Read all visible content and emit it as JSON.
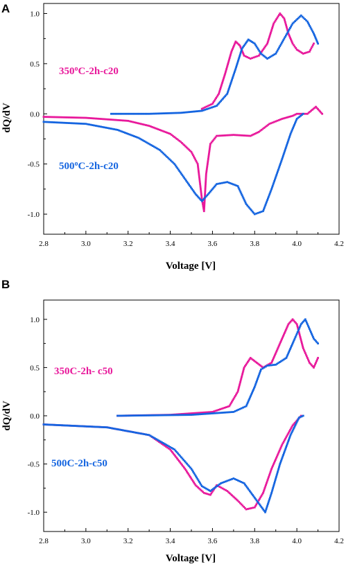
{
  "colors": {
    "series_350": "#E8199B",
    "series_500": "#1565E0",
    "axis": "#000000"
  },
  "chart_data": [
    {
      "type": "scatter",
      "panel_label": "A",
      "xlabel": "Voltage [V]",
      "ylabel": "dQ/dV",
      "xlim": [
        2.8,
        4.2
      ],
      "ylim": [
        -1.2,
        1.1
      ],
      "xticks": [
        "2.8",
        "3.0",
        "3.2",
        "3.4",
        "3.6",
        "3.8",
        "4.0",
        "4.2"
      ],
      "yticks": [
        "1.0",
        "0.5",
        "0.0",
        "-0.5",
        "-1.0"
      ],
      "grid": false,
      "series": [
        {
          "name": "350oC-2h-c20",
          "label_main": "350",
          "label_sup": "o",
          "label_rest": "C-2h-c20",
          "color": "#E8199B",
          "charge": [
            [
              3.55,
              0.05
            ],
            [
              3.6,
              0.1
            ],
            [
              3.63,
              0.2
            ],
            [
              3.66,
              0.4
            ],
            [
              3.69,
              0.62
            ],
            [
              3.71,
              0.72
            ],
            [
              3.73,
              0.68
            ],
            [
              3.75,
              0.58
            ],
            [
              3.78,
              0.55
            ],
            [
              3.82,
              0.58
            ],
            [
              3.86,
              0.7
            ],
            [
              3.89,
              0.9
            ],
            [
              3.92,
              1.0
            ],
            [
              3.94,
              0.95
            ],
            [
              3.96,
              0.8
            ],
            [
              3.98,
              0.7
            ],
            [
              4.0,
              0.64
            ],
            [
              4.03,
              0.6
            ],
            [
              4.06,
              0.62
            ],
            [
              4.08,
              0.7
            ]
          ],
          "discharge": [
            [
              2.8,
              -0.03
            ],
            [
              3.0,
              -0.04
            ],
            [
              3.2,
              -0.07
            ],
            [
              3.3,
              -0.12
            ],
            [
              3.4,
              -0.2
            ],
            [
              3.45,
              -0.28
            ],
            [
              3.5,
              -0.38
            ],
            [
              3.53,
              -0.5
            ],
            [
              3.55,
              -0.85
            ],
            [
              3.56,
              -0.97
            ],
            [
              3.57,
              -0.6
            ],
            [
              3.59,
              -0.3
            ],
            [
              3.62,
              -0.22
            ],
            [
              3.7,
              -0.21
            ],
            [
              3.78,
              -0.22
            ],
            [
              3.82,
              -0.18
            ],
            [
              3.87,
              -0.1
            ],
            [
              3.93,
              -0.05
            ],
            [
              3.98,
              -0.02
            ],
            [
              4.0,
              0.0
            ],
            [
              4.05,
              0.0
            ],
            [
              4.09,
              0.07
            ],
            [
              4.12,
              0.0
            ]
          ]
        },
        {
          "name": "500oC-2h-c20",
          "label_main": "500",
          "label_sup": "o",
          "label_rest": "C-2h-c20",
          "color": "#1565E0",
          "charge": [
            [
              3.12,
              0.0
            ],
            [
              3.3,
              0.0
            ],
            [
              3.45,
              0.01
            ],
            [
              3.55,
              0.03
            ],
            [
              3.62,
              0.08
            ],
            [
              3.67,
              0.2
            ],
            [
              3.71,
              0.45
            ],
            [
              3.74,
              0.65
            ],
            [
              3.77,
              0.74
            ],
            [
              3.8,
              0.7
            ],
            [
              3.83,
              0.6
            ],
            [
              3.86,
              0.55
            ],
            [
              3.9,
              0.6
            ],
            [
              3.94,
              0.75
            ],
            [
              3.98,
              0.9
            ],
            [
              4.02,
              0.98
            ],
            [
              4.05,
              0.92
            ],
            [
              4.08,
              0.8
            ],
            [
              4.1,
              0.7
            ]
          ],
          "discharge": [
            [
              2.8,
              -0.08
            ],
            [
              3.0,
              -0.1
            ],
            [
              3.15,
              -0.16
            ],
            [
              3.25,
              -0.24
            ],
            [
              3.35,
              -0.36
            ],
            [
              3.42,
              -0.5
            ],
            [
              3.48,
              -0.68
            ],
            [
              3.52,
              -0.8
            ],
            [
              3.55,
              -0.87
            ],
            [
              3.58,
              -0.8
            ],
            [
              3.62,
              -0.7
            ],
            [
              3.67,
              -0.68
            ],
            [
              3.72,
              -0.72
            ],
            [
              3.76,
              -0.9
            ],
            [
              3.8,
              -1.0
            ],
            [
              3.84,
              -0.97
            ],
            [
              3.88,
              -0.75
            ],
            [
              3.93,
              -0.45
            ],
            [
              3.97,
              -0.2
            ],
            [
              4.0,
              -0.05
            ],
            [
              4.03,
              0.0
            ]
          ]
        }
      ]
    },
    {
      "type": "scatter",
      "panel_label": "B",
      "xlabel": "Voltage [V]",
      "ylabel": "dQ/dV",
      "xlim": [
        2.8,
        4.2
      ],
      "ylim": [
        -1.2,
        1.2
      ],
      "xticks": [
        "2.8",
        "3.0",
        "3.2",
        "3.4",
        "3.6",
        "3.8",
        "4.0",
        "4.2"
      ],
      "yticks": [
        "1.0",
        "0.5",
        "0.0",
        "-0.5",
        "-1.0"
      ],
      "grid": false,
      "series": [
        {
          "name": "350C-2h- c50",
          "label_main": "350C-2h- c50",
          "label_sup": "",
          "label_rest": "",
          "color": "#E8199B",
          "charge": [
            [
              3.15,
              0.0
            ],
            [
              3.4,
              0.01
            ],
            [
              3.6,
              0.04
            ],
            [
              3.68,
              0.1
            ],
            [
              3.72,
              0.25
            ],
            [
              3.75,
              0.5
            ],
            [
              3.78,
              0.6
            ],
            [
              3.81,
              0.55
            ],
            [
              3.84,
              0.5
            ],
            [
              3.88,
              0.55
            ],
            [
              3.92,
              0.75
            ],
            [
              3.96,
              0.95
            ],
            [
              3.98,
              1.0
            ],
            [
              4.0,
              0.95
            ],
            [
              4.03,
              0.7
            ],
            [
              4.06,
              0.55
            ],
            [
              4.08,
              0.5
            ],
            [
              4.1,
              0.6
            ]
          ],
          "discharge": [
            [
              2.8,
              -0.09
            ],
            [
              3.1,
              -0.12
            ],
            [
              3.3,
              -0.2
            ],
            [
              3.4,
              -0.35
            ],
            [
              3.47,
              -0.55
            ],
            [
              3.52,
              -0.72
            ],
            [
              3.56,
              -0.8
            ],
            [
              3.59,
              -0.82
            ],
            [
              3.62,
              -0.72
            ],
            [
              3.67,
              -0.78
            ],
            [
              3.72,
              -0.88
            ],
            [
              3.76,
              -0.97
            ],
            [
              3.8,
              -0.95
            ],
            [
              3.84,
              -0.8
            ],
            [
              3.88,
              -0.55
            ],
            [
              3.93,
              -0.3
            ],
            [
              3.98,
              -0.1
            ],
            [
              4.02,
              0.0
            ]
          ]
        },
        {
          "name": "500C-2h-c50",
          "label_main": "500C-2h-c50",
          "label_sup": "",
          "label_rest": "",
          "color": "#1565E0",
          "charge": [
            [
              3.15,
              0.0
            ],
            [
              3.5,
              0.01
            ],
            [
              3.7,
              0.04
            ],
            [
              3.76,
              0.1
            ],
            [
              3.8,
              0.3
            ],
            [
              3.83,
              0.48
            ],
            [
              3.86,
              0.52
            ],
            [
              3.9,
              0.53
            ],
            [
              3.95,
              0.6
            ],
            [
              3.99,
              0.8
            ],
            [
              4.02,
              0.95
            ],
            [
              4.04,
              1.0
            ],
            [
              4.06,
              0.9
            ],
            [
              4.08,
              0.8
            ],
            [
              4.1,
              0.75
            ]
          ],
          "discharge": [
            [
              2.8,
              -0.09
            ],
            [
              3.1,
              -0.12
            ],
            [
              3.3,
              -0.2
            ],
            [
              3.42,
              -0.35
            ],
            [
              3.5,
              -0.55
            ],
            [
              3.55,
              -0.73
            ],
            [
              3.59,
              -0.78
            ],
            [
              3.64,
              -0.7
            ],
            [
              3.7,
              -0.65
            ],
            [
              3.75,
              -0.7
            ],
            [
              3.8,
              -0.85
            ],
            [
              3.85,
              -1.0
            ],
            [
              3.88,
              -0.8
            ],
            [
              3.92,
              -0.5
            ],
            [
              3.97,
              -0.2
            ],
            [
              4.01,
              -0.02
            ],
            [
              4.03,
              0.0
            ]
          ]
        }
      ]
    }
  ]
}
